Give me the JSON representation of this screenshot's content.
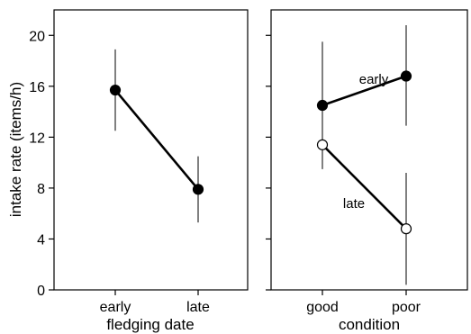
{
  "chart_data": [
    {
      "type": "line",
      "xlabel": "fledging date",
      "ylabel": "intake rate (items/h)",
      "categories": [
        "early",
        "late"
      ],
      "ylim": [
        0,
        22
      ],
      "yticks": [
        0,
        4,
        8,
        12,
        16,
        20
      ],
      "series": [
        {
          "name": "",
          "marker": "filled",
          "values": [
            15.7,
            7.9
          ],
          "err_low": [
            12.5,
            5.3
          ],
          "err_high": [
            18.9,
            10.5
          ]
        }
      ]
    },
    {
      "type": "line",
      "xlabel": "condition",
      "ylabel": "",
      "categories": [
        "good",
        "poor"
      ],
      "ylim": [
        0,
        22
      ],
      "yticks": [
        0,
        4,
        8,
        12,
        16,
        20
      ],
      "series": [
        {
          "name": "early",
          "marker": "filled",
          "values": [
            14.5,
            16.8
          ],
          "err_low": [
            9.5,
            12.9
          ],
          "err_high": [
            19.5,
            20.8
          ]
        },
        {
          "name": "late",
          "marker": "open",
          "values": [
            11.4,
            4.8
          ],
          "err_low": [
            9.5,
            0.4
          ],
          "err_high": [
            13.3,
            9.2
          ]
        }
      ]
    }
  ]
}
